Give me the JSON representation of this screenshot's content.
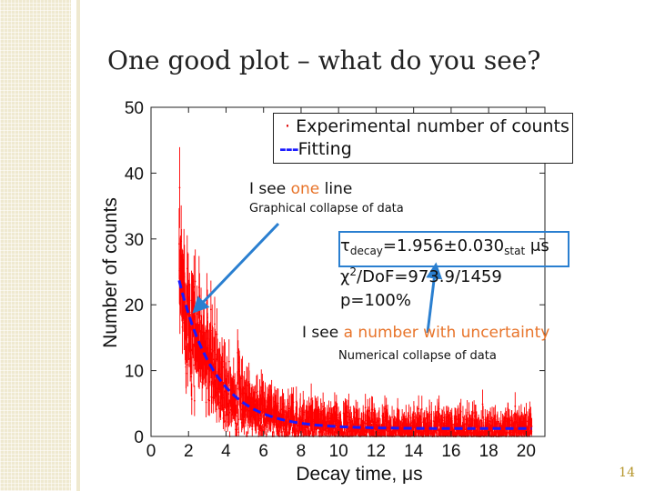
{
  "slide": {
    "title": "One good plot – what do you see?",
    "page_number": "14"
  },
  "annotations": {
    "line_prefix": "I see ",
    "line_highlight": "one",
    "line_suffix": " line",
    "graphical_caption": "Graphical collapse of data",
    "number_prefix": "I see ",
    "number_highlight": "a number with uncertainty",
    "numerical_caption": "Numerical collapse of data"
  },
  "fit_results": {
    "tau_symbol": "τ",
    "tau_sub": "decay",
    "tau_value": "=1.956±0.030",
    "tau_unit_sub": "stat",
    "tau_unit": " μs",
    "chi_symbol": "χ",
    "chi_sup": "2",
    "chi_rest": "/DoF=973.9/1459",
    "p_value": "p=100%"
  },
  "colors": {
    "data": "#ff0000",
    "fit": "#1a1aff",
    "arrow": "#2a7fd0",
    "highlight": "#e8742a",
    "page_number": "#b5952a"
  },
  "chart_data": {
    "type": "scatter",
    "title": "",
    "xlabel": "Decay time, μs",
    "ylabel": "Number of counts",
    "xlim": [
      0,
      21
    ],
    "ylim": [
      0,
      50
    ],
    "x_ticks": [
      "0",
      "2",
      "4",
      "6",
      "8",
      "10",
      "12",
      "14",
      "16",
      "18",
      "20"
    ],
    "y_ticks": [
      "0",
      "10",
      "20",
      "30",
      "40",
      "50"
    ],
    "legend": [
      {
        "label": "Experimental number of counts",
        "marker": "dot"
      },
      {
        "label": "Fitting",
        "marker": "dashed-line"
      }
    ],
    "legend_position": "top-right",
    "series": [
      {
        "name": "Experimental number of counts",
        "x_range": [
          1.5,
          20.3
        ],
        "model": "exponential decay with Poisson scatter",
        "points": 1460
      },
      {
        "name": "Fitting",
        "function": "A*exp(-(t-1.5)/tau)+B",
        "A": 22.5,
        "B": 1.2,
        "tau": 1.956,
        "x_range": [
          1.5,
          20.3
        ]
      }
    ]
  }
}
